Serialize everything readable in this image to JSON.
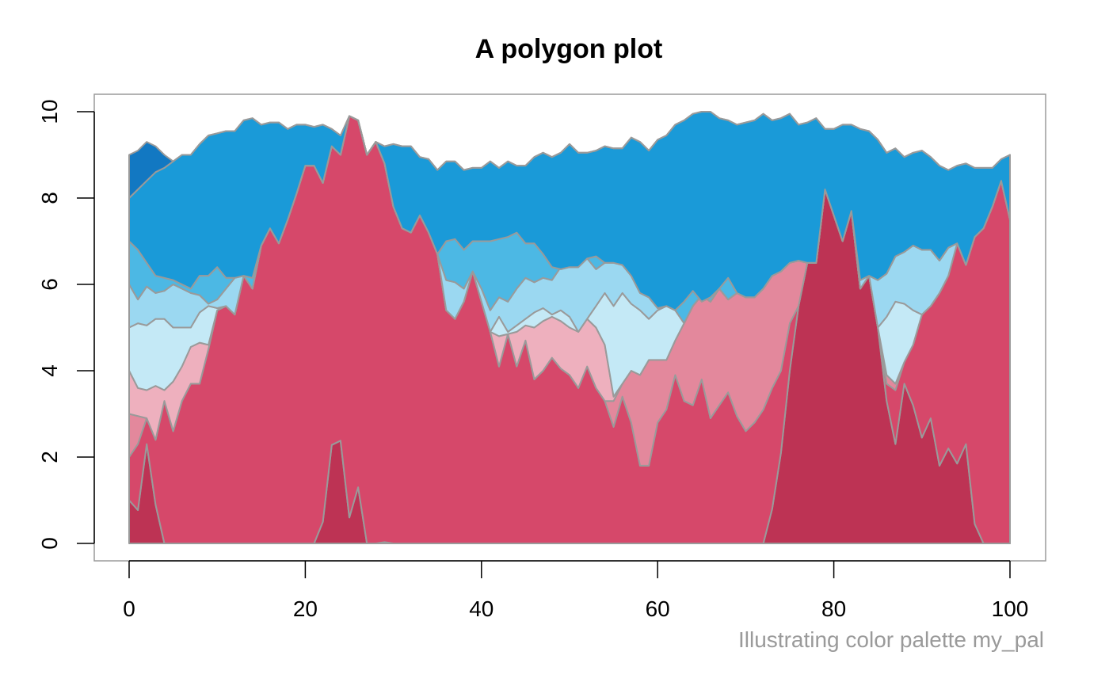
{
  "chart_data": {
    "type": "area",
    "title": "A polygon plot",
    "subtitle": "Illustrating color palette my_pal",
    "xlim": [
      0,
      100
    ],
    "ylim": [
      0,
      10
    ],
    "x_ticks": [
      0,
      20,
      40,
      60,
      80,
      100
    ],
    "y_ticks": [
      0,
      2,
      4,
      6,
      8,
      10
    ],
    "x_tick_labels": [
      "0",
      "20",
      "40",
      "60",
      "80",
      "100"
    ],
    "y_tick_labels": [
      "0",
      "2",
      "4",
      "6",
      "8",
      "10"
    ],
    "outline_color": "#9a9a9a",
    "palette": [
      "#BD3354",
      "#D6486A",
      "#E3889C",
      "#EEB0BE",
      "#C4E9F6",
      "#9BD8F1",
      "#4CB8E4",
      "#1A9AD8",
      "#1278C2"
    ],
    "grid": false,
    "x": [
      0,
      1,
      2,
      3,
      4,
      5,
      6,
      7,
      8,
      9,
      10,
      11,
      12,
      13,
      14,
      15,
      16,
      17,
      18,
      19,
      20,
      21,
      22,
      23,
      24,
      25,
      26,
      27,
      28,
      29,
      30,
      31,
      32,
      33,
      34,
      35,
      36,
      37,
      38,
      39,
      40,
      41,
      42,
      43,
      44,
      45,
      46,
      47,
      48,
      49,
      50,
      51,
      52,
      53,
      54,
      55,
      56,
      57,
      58,
      59,
      60,
      61,
      62,
      63,
      64,
      65,
      66,
      67,
      68,
      69,
      70,
      71,
      72,
      73,
      74,
      75,
      76,
      77,
      78,
      79,
      80,
      81,
      82,
      83,
      84,
      85,
      86,
      87,
      88,
      89,
      90,
      91,
      92,
      93,
      94,
      95,
      96,
      97,
      98,
      99,
      100
    ],
    "boundaries": [
      [
        1.0,
        0.77,
        2.3,
        0.9,
        0.0,
        0.0,
        0.0,
        0.0,
        0.0,
        0.0,
        0.0,
        0.0,
        0.0,
        0.0,
        0.0,
        0.0,
        0.0,
        0.0,
        0.0,
        0.0,
        0.0,
        0.0,
        0.5,
        2.28,
        2.38,
        0.6,
        1.3,
        0.0,
        0.0,
        0.03,
        0.0,
        0.0,
        0.0,
        0.0,
        0.0,
        0.0,
        0.0,
        0.0,
        0.0,
        0.0,
        0.0,
        0.0,
        0.0,
        0.0,
        0.0,
        0.0,
        0.0,
        0.0,
        0.0,
        0.0,
        0.0,
        0.0,
        0.0,
        0.0,
        0.0,
        0.0,
        0.0,
        0.0,
        0.0,
        0.0,
        0.0,
        0.0,
        0.0,
        0.0,
        0.0,
        0.0,
        0.0,
        0.0,
        0.0,
        0.0,
        0.0,
        0.0,
        0.0,
        0.8,
        2.1,
        4.0,
        5.5,
        6.5,
        6.5,
        8.2,
        7.6,
        7.0,
        7.7,
        5.9,
        6.2,
        5.0,
        3.3,
        2.3,
        3.7,
        3.2,
        2.45,
        2.9,
        1.8,
        2.2,
        1.85,
        2.3,
        0.45,
        0.0,
        0.0,
        0.0,
        0.0
      ],
      [
        2.0,
        2.3,
        2.9,
        2.4,
        3.3,
        2.6,
        3.3,
        3.7,
        3.7,
        4.5,
        5.4,
        5.5,
        5.3,
        6.2,
        5.9,
        6.9,
        7.3,
        6.95,
        7.5,
        8.1,
        8.75,
        8.75,
        8.35,
        9.2,
        9.0,
        9.9,
        9.8,
        9.0,
        9.3,
        8.8,
        7.8,
        7.3,
        7.2,
        7.6,
        7.2,
        6.7,
        5.4,
        5.2,
        5.6,
        6.3,
        5.6,
        4.9,
        4.1,
        4.85,
        4.1,
        4.7,
        3.8,
        4.0,
        4.3,
        4.05,
        3.9,
        3.6,
        4.1,
        3.6,
        3.3,
        2.7,
        3.4,
        2.8,
        1.8,
        1.8,
        2.8,
        3.1,
        3.9,
        3.3,
        3.2,
        3.8,
        2.9,
        3.2,
        3.5,
        2.95,
        2.6,
        2.8,
        3.1,
        3.6,
        4.0,
        5.1,
        5.5,
        6.5,
        6.5,
        8.2,
        7.6,
        7.0,
        7.7,
        5.9,
        6.2,
        5.0,
        3.7,
        3.55,
        4.2,
        4.6,
        5.3,
        5.5,
        5.8,
        6.2,
        6.95,
        6.45,
        7.1,
        7.3,
        7.8,
        8.4,
        7.5
      ],
      [
        3.0,
        2.95,
        2.9,
        2.4,
        3.3,
        2.6,
        3.3,
        3.7,
        3.7,
        4.5,
        5.4,
        5.5,
        5.3,
        6.2,
        5.9,
        6.9,
        7.3,
        6.95,
        7.5,
        8.1,
        8.75,
        8.75,
        8.35,
        9.2,
        9.0,
        9.9,
        9.8,
        9.0,
        9.3,
        8.8,
        7.8,
        7.3,
        7.2,
        7.6,
        7.2,
        6.7,
        5.4,
        5.2,
        5.6,
        6.3,
        5.6,
        4.9,
        4.1,
        4.85,
        4.1,
        4.7,
        3.8,
        4.0,
        4.3,
        4.05,
        3.9,
        3.6,
        4.1,
        3.6,
        3.3,
        3.3,
        3.7,
        4.0,
        3.9,
        4.25,
        4.25,
        4.25,
        4.7,
        5.1,
        5.5,
        5.75,
        5.6,
        5.9,
        5.65,
        5.8,
        5.7,
        5.7,
        5.9,
        6.2,
        6.3,
        6.5,
        6.55,
        6.5,
        6.5,
        8.2,
        7.6,
        7.0,
        7.7,
        5.9,
        6.2,
        5.0,
        3.9,
        3.7,
        4.2,
        4.6,
        5.3,
        5.5,
        5.8,
        6.2,
        6.95,
        6.45,
        7.1,
        7.3,
        7.8,
        8.4,
        7.5
      ],
      [
        4.0,
        3.6,
        3.55,
        3.65,
        3.55,
        3.75,
        4.1,
        4.55,
        4.65,
        4.6,
        5.4,
        5.5,
        5.3,
        6.2,
        5.9,
        6.9,
        7.3,
        6.95,
        7.5,
        8.1,
        8.75,
        8.75,
        8.35,
        9.2,
        9.0,
        9.9,
        9.8,
        9.0,
        9.3,
        8.8,
        7.8,
        7.3,
        7.2,
        7.6,
        7.2,
        6.7,
        5.4,
        5.2,
        5.6,
        6.3,
        5.6,
        4.9,
        4.8,
        4.85,
        4.9,
        5.05,
        5.0,
        5.15,
        5.25,
        5.15,
        5.0,
        4.9,
        5.2,
        5.0,
        4.6,
        3.4,
        3.7,
        4.0,
        3.9,
        4.25,
        4.25,
        4.25,
        4.7,
        5.1,
        5.5,
        5.75,
        5.6,
        5.9,
        5.65,
        5.8,
        5.7,
        5.7,
        5.9,
        6.2,
        6.3,
        6.5,
        6.55,
        6.5,
        6.5,
        8.2,
        7.6,
        7.0,
        7.7,
        5.9,
        6.2,
        5.0,
        3.9,
        3.7,
        4.2,
        4.6,
        5.3,
        5.5,
        5.8,
        6.2,
        6.95,
        6.45,
        7.1,
        7.3,
        7.8,
        8.4,
        7.5
      ],
      [
        5.0,
        5.1,
        5.05,
        5.2,
        5.2,
        5.0,
        5.0,
        5.0,
        5.35,
        5.5,
        5.45,
        5.5,
        5.3,
        6.2,
        5.9,
        6.9,
        7.3,
        6.95,
        7.5,
        8.1,
        8.75,
        8.75,
        8.35,
        9.2,
        9.0,
        9.9,
        9.8,
        9.0,
        9.3,
        8.8,
        7.8,
        7.3,
        7.2,
        7.6,
        7.2,
        6.7,
        5.4,
        5.2,
        5.6,
        6.3,
        5.6,
        4.9,
        5.25,
        4.9,
        5.05,
        5.2,
        5.35,
        5.45,
        5.3,
        5.4,
        5.25,
        4.9,
        5.2,
        5.5,
        5.8,
        5.5,
        5.8,
        5.55,
        5.4,
        5.2,
        5.4,
        5.5,
        5.4,
        5.1,
        5.5,
        5.75,
        5.6,
        5.9,
        5.65,
        5.8,
        5.7,
        5.7,
        5.9,
        6.2,
        6.3,
        6.5,
        6.55,
        6.5,
        6.5,
        8.2,
        7.6,
        7.0,
        7.7,
        5.9,
        6.2,
        5.0,
        5.25,
        5.6,
        5.55,
        5.4,
        5.3,
        5.5,
        5.8,
        6.2,
        6.95,
        6.45,
        7.1,
        7.3,
        7.8,
        8.4,
        7.5
      ],
      [
        6.0,
        5.65,
        5.95,
        5.8,
        5.85,
        6.0,
        5.9,
        5.8,
        5.75,
        5.55,
        5.65,
        5.9,
        6.15,
        6.2,
        5.9,
        6.9,
        7.3,
        6.95,
        7.5,
        8.1,
        8.75,
        8.75,
        8.35,
        9.2,
        9.0,
        9.9,
        9.8,
        9.0,
        9.3,
        8.8,
        7.8,
        7.3,
        7.2,
        7.6,
        7.2,
        6.7,
        6.1,
        6.05,
        5.9,
        6.3,
        5.9,
        5.4,
        5.7,
        5.6,
        5.9,
        6.15,
        6.05,
        6.15,
        6.1,
        6.4,
        6.4,
        6.4,
        6.6,
        6.35,
        6.5,
        6.5,
        6.45,
        6.2,
        5.8,
        5.7,
        5.45,
        5.5,
        5.4,
        5.1,
        5.5,
        5.75,
        5.6,
        5.9,
        5.65,
        5.8,
        5.7,
        5.7,
        5.9,
        6.2,
        6.3,
        6.5,
        6.55,
        6.5,
        6.5,
        8.2,
        7.6,
        7.0,
        7.7,
        6.1,
        6.2,
        6.1,
        6.25,
        6.65,
        6.75,
        6.9,
        6.8,
        6.8,
        6.55,
        6.85,
        6.95,
        6.45,
        7.1,
        7.3,
        7.8,
        8.4,
        7.5
      ],
      [
        7.0,
        6.8,
        6.5,
        6.2,
        6.15,
        6.1,
        6.0,
        5.9,
        6.2,
        6.2,
        6.4,
        6.15,
        6.15,
        6.2,
        6.15,
        6.9,
        7.3,
        6.95,
        7.5,
        8.1,
        8.75,
        8.75,
        8.35,
        9.2,
        9.0,
        9.9,
        9.8,
        9.0,
        9.3,
        8.8,
        7.8,
        7.3,
        7.2,
        7.6,
        7.2,
        6.7,
        7.0,
        7.05,
        6.8,
        7.0,
        7.0,
        7.0,
        7.05,
        7.1,
        7.2,
        6.95,
        6.95,
        6.7,
        6.4,
        6.35,
        6.4,
        6.4,
        6.6,
        6.65,
        6.5,
        6.5,
        6.45,
        6.2,
        5.8,
        5.7,
        5.45,
        5.5,
        5.4,
        5.6,
        5.85,
        5.6,
        5.7,
        5.9,
        6.15,
        5.8,
        5.7,
        5.7,
        5.9,
        6.2,
        6.3,
        6.5,
        6.55,
        6.5,
        6.5,
        8.2,
        7.6,
        7.0,
        7.7,
        6.1,
        6.2,
        6.1,
        6.25,
        6.65,
        6.75,
        6.9,
        6.8,
        6.8,
        6.55,
        6.85,
        6.95,
        6.45,
        7.1,
        7.3,
        7.8,
        8.4,
        7.5
      ],
      [
        8.0,
        8.2,
        8.4,
        8.6,
        8.7,
        8.85,
        9.0,
        9.0,
        9.25,
        9.45,
        9.5,
        9.55,
        9.55,
        9.8,
        9.85,
        9.7,
        9.75,
        9.75,
        9.6,
        9.7,
        9.7,
        9.65,
        9.7,
        9.6,
        9.45,
        9.9,
        9.8,
        9.0,
        9.3,
        9.2,
        9.25,
        9.2,
        9.2,
        8.95,
        8.9,
        8.65,
        8.85,
        8.85,
        8.65,
        8.7,
        8.7,
        8.85,
        8.7,
        8.85,
        8.75,
        8.75,
        8.95,
        9.05,
        8.95,
        9.05,
        9.25,
        9.05,
        9.05,
        9.1,
        9.2,
        9.15,
        9.15,
        9.4,
        9.3,
        9.1,
        9.35,
        9.45,
        9.7,
        9.8,
        9.95,
        10.0,
        10.0,
        9.85,
        9.8,
        9.7,
        9.75,
        9.8,
        9.95,
        9.8,
        9.85,
        9.95,
        9.7,
        9.75,
        9.85,
        9.6,
        9.6,
        9.7,
        9.7,
        9.6,
        9.55,
        9.35,
        9.05,
        9.15,
        8.95,
        9.05,
        9.1,
        8.95,
        8.75,
        8.65,
        8.75,
        8.8,
        8.7,
        8.7,
        8.7,
        8.9,
        9.0
      ],
      [
        9.0,
        9.1,
        9.3,
        9.2,
        9.0,
        8.85,
        9.0,
        9.0,
        9.25,
        9.45,
        9.5,
        9.55,
        9.55,
        9.8,
        9.85,
        9.7,
        9.75,
        9.75,
        9.6,
        9.7,
        9.7,
        9.65,
        9.7,
        9.6,
        9.45,
        9.9,
        9.8,
        9.0,
        9.3,
        9.2,
        9.25,
        9.2,
        9.2,
        8.95,
        8.9,
        8.65,
        8.85,
        8.85,
        8.65,
        8.7,
        8.7,
        8.85,
        8.7,
        8.85,
        8.75,
        8.75,
        8.95,
        9.05,
        8.95,
        9.05,
        9.25,
        9.05,
        9.05,
        9.1,
        9.2,
        9.15,
        9.15,
        9.4,
        9.3,
        9.1,
        9.35,
        9.45,
        9.7,
        9.8,
        9.95,
        10.0,
        10.0,
        9.85,
        9.8,
        9.7,
        9.75,
        9.8,
        9.95,
        9.8,
        9.85,
        9.95,
        9.7,
        9.75,
        9.85,
        9.6,
        9.6,
        9.7,
        9.7,
        9.6,
        9.55,
        9.35,
        9.05,
        9.15,
        8.95,
        9.05,
        9.1,
        8.95,
        8.75,
        8.65,
        8.75,
        8.8,
        8.7,
        8.7,
        8.7,
        8.9,
        9.0
      ],
      [
        10.0,
        10.0,
        10.0,
        10.0,
        10.0,
        10.0,
        10.0,
        10.0,
        10.0,
        10.0,
        10.0,
        10.0,
        10.0,
        10.0,
        10.0,
        10.0,
        10.0,
        10.0,
        10.0,
        10.0,
        10.0,
        10.0,
        10.0,
        10.0,
        10.0,
        10.0,
        10.0,
        10.0,
        10.0,
        10.0,
        10.0,
        10.0,
        10.0,
        10.0,
        10.0,
        10.0,
        10.0,
        10.0,
        10.0,
        10.0,
        10.0,
        10.0,
        10.0,
        10.0,
        10.0,
        10.0,
        10.0,
        10.0,
        10.0,
        10.0,
        10.0,
        10.0,
        10.0,
        10.0,
        10.0,
        10.0,
        10.0,
        10.0,
        10.0,
        10.0,
        10.0,
        10.0,
        10.0,
        10.0,
        10.0,
        10.0,
        10.0,
        10.0,
        10.0,
        10.0,
        10.0,
        10.0,
        10.0,
        10.0,
        10.0,
        10.0,
        10.0,
        10.0,
        10.0,
        10.0,
        10.0,
        10.0,
        10.0,
        10.0,
        10.0,
        10.0,
        10.0,
        10.0,
        10.0,
        10.0,
        10.0,
        10.0,
        10.0,
        10.0,
        10.0,
        10.0,
        10.0,
        10.0,
        10.0,
        10.0,
        10.0
      ]
    ]
  }
}
